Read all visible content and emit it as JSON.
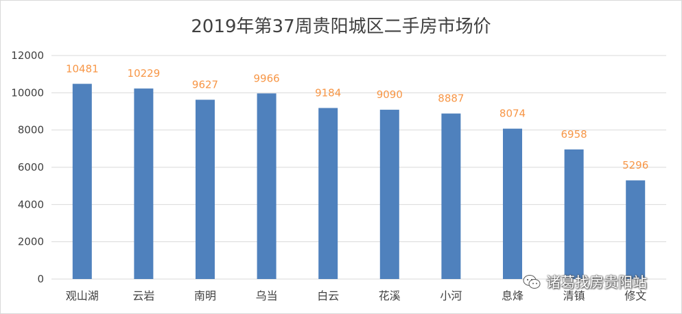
{
  "colors": {
    "bar": "#4f81bd",
    "label": "#f79646",
    "grid": "#d9d9d9",
    "text": "#404040"
  },
  "chart_data": {
    "type": "bar",
    "title": "2019年第37周贵阳城区二手房市场价",
    "categories": [
      "观山湖",
      "云岩",
      "南明",
      "乌当",
      "白云",
      "花溪",
      "小河",
      "息烽",
      "清镇",
      "修文"
    ],
    "values": [
      10481,
      10229,
      9627,
      9966,
      9184,
      9090,
      8887,
      8074,
      6958,
      5296
    ],
    "ylim": [
      0,
      12000
    ],
    "yticks": [
      0,
      2000,
      4000,
      6000,
      8000,
      10000,
      12000
    ],
    "grid": true,
    "legend": "none",
    "data_labels": true
  },
  "watermark": {
    "text": "诸葛找房贵阳站",
    "icon": "wechat-icon"
  }
}
